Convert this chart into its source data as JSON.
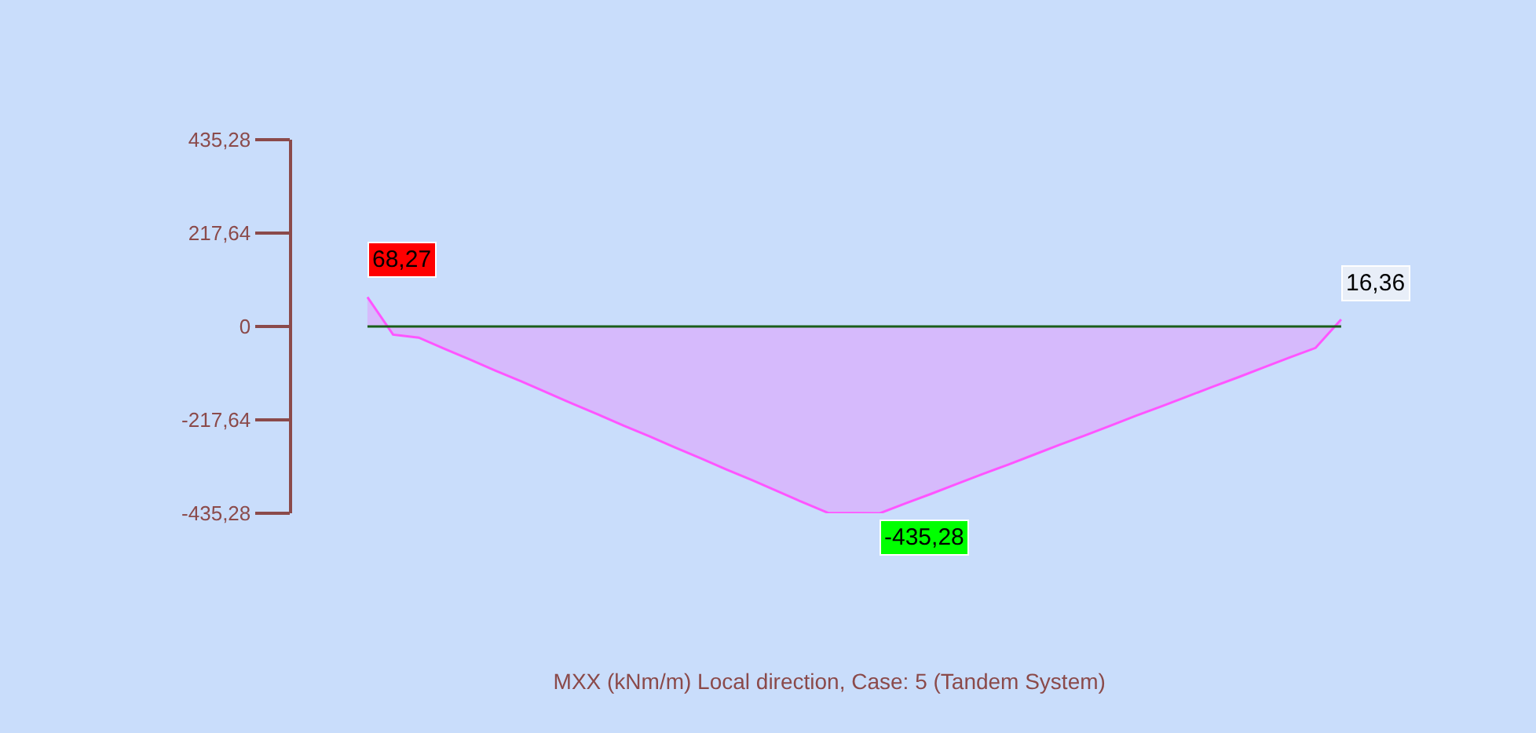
{
  "chart_data": {
    "type": "area",
    "title": "MXX (kNm/m) Local direction, Case: 5 (Tandem System)",
    "categories": [
      null,
      null,
      null,
      null,
      null,
      null,
      null,
      null,
      null,
      null,
      null,
      null,
      null,
      null,
      null,
      null,
      null,
      null,
      null,
      null,
      null,
      null,
      null,
      null,
      null,
      null,
      null,
      null,
      null,
      null,
      null,
      null,
      null,
      null,
      null,
      null,
      null,
      null,
      null
    ],
    "series": [
      {
        "color": "#ff55ff",
        "values": [
          68.27,
          -19,
          -26,
          -52,
          -77,
          -103,
          -128,
          -154,
          -180,
          -205,
          -231,
          -256,
          -282,
          -307,
          -333,
          -358,
          -384,
          -410,
          -435,
          -435,
          -435.28,
          -412,
          -390,
          -367,
          -344,
          -322,
          -299,
          -276,
          -254,
          -231,
          -208,
          -186,
          -163,
          -140,
          -118,
          -95,
          -72,
          -50,
          16.36
        ],
        "value_labels": [
          "68,27",
          null,
          null,
          null,
          null,
          null,
          null,
          null,
          null,
          null,
          null,
          null,
          null,
          null,
          null,
          null,
          null,
          null,
          null,
          null,
          "-435,28",
          null,
          null,
          null,
          null,
          null,
          null,
          null,
          null,
          null,
          null,
          null,
          null,
          null,
          null,
          null,
          null,
          null,
          "16,36"
        ]
      }
    ],
    "ylim": [
      -435.28,
      435.28
    ],
    "yticks": [
      {
        "value": 435.28,
        "label": "435,28"
      },
      {
        "value": 217.64,
        "label": "217,64"
      },
      0,
      {
        "value": -217.64,
        "label": "-217,64"
      },
      {
        "value": -435.28,
        "label": "-435,28"
      }
    ],
    "ref_lines": [
      {
        "axis": "y",
        "value": 0,
        "color": "#1a5e1a"
      }
    ],
    "tick_labels": "y"
  }
}
